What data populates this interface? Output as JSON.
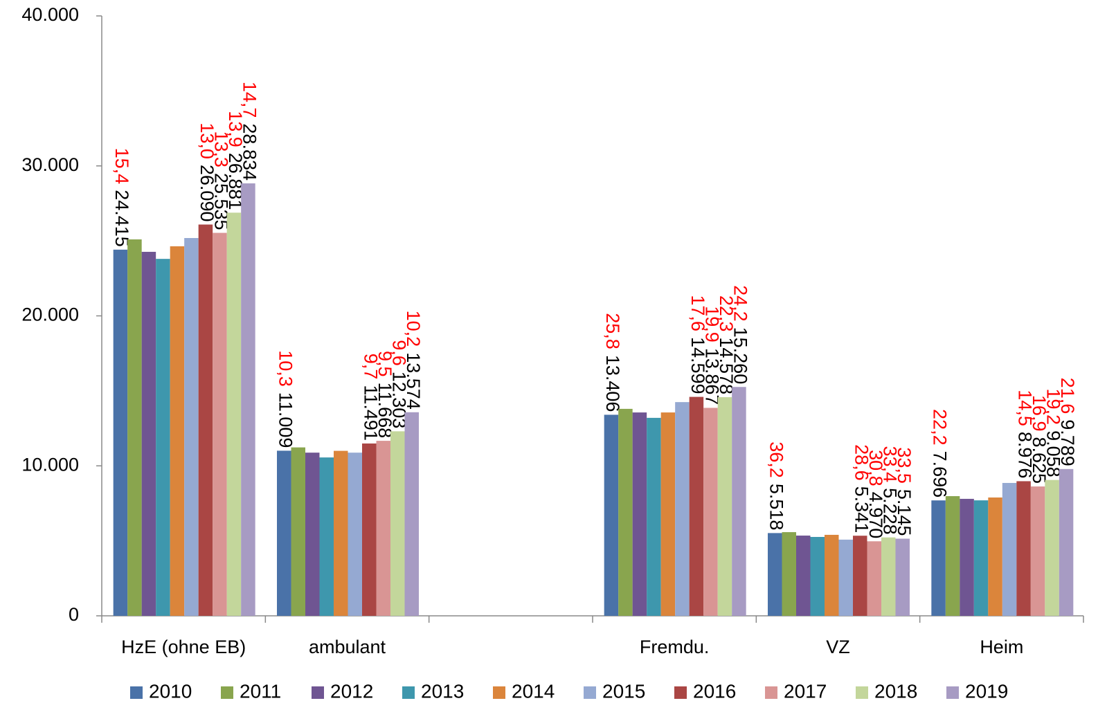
{
  "chart_data": {
    "type": "bar",
    "categories": [
      "HzE (ohne EB)",
      "ambulant",
      null,
      "Fremdu.",
      "VZ",
      "Heim"
    ],
    "ylim": [
      0,
      40000
    ],
    "yticks": [
      0,
      {
        "value": 10000,
        "label": "10.000"
      },
      {
        "value": 20000,
        "label": "20.000"
      },
      {
        "value": 30000,
        "label": "30.000"
      },
      {
        "value": 40000,
        "label": "40.000"
      }
    ],
    "grid": false,
    "legend": "bottom",
    "series": [
      {
        "name": "2010",
        "color": "#4a72a8",
        "values": [
          24415,
          11009,
          null,
          13406,
          5518,
          7696
        ],
        "value_labels": [
          "24.415",
          "11.009",
          null,
          "13.406",
          "5.518",
          "7.696"
        ],
        "share_labels": [
          "15,4",
          "10,3",
          null,
          "25,8",
          "36,2",
          "22,2"
        ]
      },
      {
        "name": "2011",
        "color": "#89a54e",
        "values": [
          25100,
          11230,
          null,
          13800,
          5580,
          7980
        ]
      },
      {
        "name": "2012",
        "color": "#6f5592",
        "values": [
          24270,
          10880,
          null,
          13560,
          5350,
          7800
        ]
      },
      {
        "name": "2013",
        "color": "#3e97ad",
        "values": [
          23800,
          10560,
          null,
          13200,
          5260,
          7700
        ]
      },
      {
        "name": "2014",
        "color": "#db853b",
        "values": [
          24640,
          11000,
          null,
          13560,
          5400,
          7890
        ]
      },
      {
        "name": "2015",
        "color": "#95a9d2",
        "values": [
          25190,
          10880,
          null,
          14250,
          5080,
          8860
        ]
      },
      {
        "name": "2016",
        "color": "#aa4644",
        "values": [
          26090,
          11491,
          null,
          14599,
          5341,
          8976
        ],
        "value_labels": [
          "26.090",
          "11.491",
          null,
          "14.599",
          "5.341",
          "8.976"
        ],
        "share_labels": [
          "13,0",
          "9,7",
          null,
          "17,6",
          "28,6",
          "14,5"
        ]
      },
      {
        "name": "2017",
        "color": "#d99594",
        "values": [
          25535,
          11668,
          null,
          13867,
          4970,
          8625
        ],
        "value_labels": [
          "25.535",
          "11.668",
          null,
          "13.867",
          "4.970",
          "8.625"
        ],
        "share_labels": [
          "13,3",
          "9,5",
          null,
          "19,9",
          "30,8",
          "16,9"
        ]
      },
      {
        "name": "2018",
        "color": "#c3d69b",
        "values": [
          26881,
          12303,
          null,
          14578,
          5228,
          9058
        ],
        "value_labels": [
          "26.881",
          "12.303",
          null,
          "14.578",
          "5.228",
          "9.058"
        ],
        "share_labels": [
          "13,9",
          "9,6",
          null,
          "22,3",
          "33,4",
          "19,2"
        ]
      },
      {
        "name": "2019",
        "color": "#a79bc3",
        "values": [
          28834,
          13574,
          null,
          15260,
          5145,
          9789
        ],
        "value_labels": [
          "28.834",
          "13.574",
          null,
          "15.260",
          "5.145",
          "9.789"
        ],
        "share_labels": [
          "14,7",
          "10,2",
          null,
          "24,2",
          "33,5",
          "21,6"
        ]
      }
    ]
  }
}
